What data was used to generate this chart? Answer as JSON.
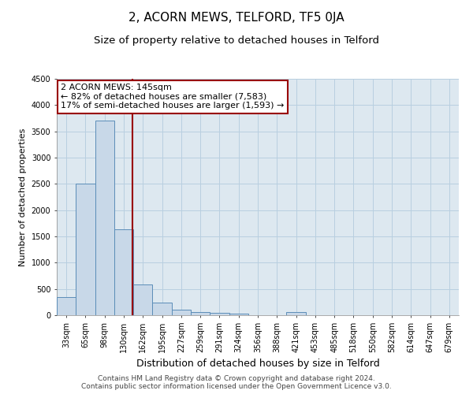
{
  "title": "2, ACORN MEWS, TELFORD, TF5 0JA",
  "subtitle": "Size of property relative to detached houses in Telford",
  "xlabel": "Distribution of detached houses by size in Telford",
  "ylabel": "Number of detached properties",
  "bin_labels": [
    "33sqm",
    "65sqm",
    "98sqm",
    "130sqm",
    "162sqm",
    "195sqm",
    "227sqm",
    "259sqm",
    "291sqm",
    "324sqm",
    "356sqm",
    "388sqm",
    "421sqm",
    "453sqm",
    "485sqm",
    "518sqm",
    "550sqm",
    "582sqm",
    "614sqm",
    "647sqm",
    "679sqm"
  ],
  "bar_values": [
    350,
    2500,
    3700,
    1630,
    580,
    240,
    110,
    55,
    40,
    35,
    0,
    0,
    55,
    0,
    0,
    0,
    0,
    0,
    0,
    0,
    0
  ],
  "bar_color": "#c8d8e8",
  "bar_edge_color": "#5b8db8",
  "vline_x_idx": 3.47,
  "vline_color": "#990000",
  "annotation_text": "2 ACORN MEWS: 145sqm\n← 82% of detached houses are smaller (7,583)\n17% of semi-detached houses are larger (1,593) →",
  "annotation_box_facecolor": "#ffffff",
  "annotation_box_edgecolor": "#990000",
  "ylim": [
    0,
    4500
  ],
  "yticks": [
    0,
    500,
    1000,
    1500,
    2000,
    2500,
    3000,
    3500,
    4000,
    4500
  ],
  "grid_color": "#b8cfe0",
  "bg_color": "#dde8f0",
  "footer_text": "Contains HM Land Registry data © Crown copyright and database right 2024.\nContains public sector information licensed under the Open Government Licence v3.0.",
  "title_fontsize": 11,
  "subtitle_fontsize": 9.5,
  "xlabel_fontsize": 9,
  "ylabel_fontsize": 8,
  "tick_fontsize": 7,
  "annotation_fontsize": 8,
  "footer_fontsize": 6.5
}
